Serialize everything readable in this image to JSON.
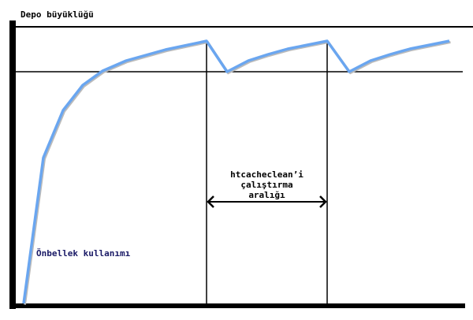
{
  "title": "Depo büyüklüğü",
  "interval_label": [
    "htcacheclean’i",
    "çalıştırma",
    "aralığı"
  ],
  "curve_label": "Önbellek kullanımı",
  "colors": {
    "curve": "#6aa6f0",
    "axes": "#000000",
    "curve_label": "#1a1a66"
  }
}
